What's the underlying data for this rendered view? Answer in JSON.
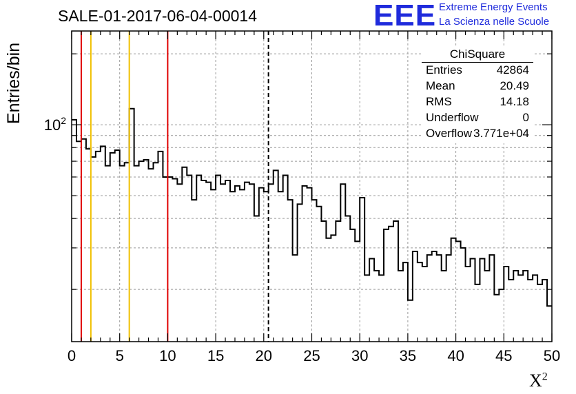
{
  "title": "SALE-01-2017-06-04-00014",
  "logo": {
    "mark": "EEE",
    "line1": "Extreme Energy Events",
    "line2": "La Scienza nelle Scuole",
    "color": "#1f2bdc"
  },
  "stats": {
    "header": "ChiSquare",
    "rows": [
      {
        "key": "Entries",
        "value": "42864"
      },
      {
        "key": "Mean",
        "value": "20.49"
      },
      {
        "key": "RMS",
        "value": "14.18"
      },
      {
        "key": "Underflow",
        "value": "0"
      },
      {
        "key": "Overflow",
        "value": "3.771e+04"
      }
    ]
  },
  "chart_data": {
    "type": "histogram",
    "xlabel": "X",
    "xlabel_sup": "2",
    "ylabel": "Entries/bin",
    "xlim": [
      0,
      50
    ],
    "ylim": [
      12,
      250
    ],
    "yscale": "log",
    "xticks": [
      "0",
      "5",
      "10",
      "15",
      "20",
      "25",
      "30",
      "35",
      "40",
      "45",
      "50"
    ],
    "ytick_label": "10",
    "ytick_label_sup": "2",
    "ytick_value": 100,
    "grid": true,
    "bin_width": 0.5,
    "values": [
      105,
      85,
      87,
      79,
      73,
      77,
      81,
      67,
      76,
      78,
      67,
      69,
      117,
      67,
      70,
      71,
      65,
      69,
      77,
      60,
      60,
      59,
      56,
      66,
      61,
      48,
      61,
      58,
      57,
      53,
      61,
      56,
      58,
      52,
      55,
      53,
      57,
      56,
      41,
      54,
      52,
      56,
      64,
      52,
      61,
      48,
      28,
      46,
      55,
      54,
      48,
      45,
      39,
      33,
      34,
      39,
      56,
      41,
      36,
      32,
      49,
      23,
      27,
      24,
      23,
      36,
      37,
      39,
      24,
      26,
      18,
      29,
      26,
      25,
      28,
      29,
      28,
      24,
      28,
      33,
      32,
      30,
      25,
      27,
      21,
      27,
      24,
      28,
      19,
      20,
      25,
      22,
      24,
      23,
      24,
      22,
      23,
      21,
      22,
      17
    ],
    "vlines": [
      {
        "x": 1.0,
        "color": "#e00000",
        "style": "solid"
      },
      {
        "x": 2.0,
        "color": "#f0c000",
        "style": "solid"
      },
      {
        "x": 6.0,
        "color": "#f0c000",
        "style": "solid"
      },
      {
        "x": 10.0,
        "color": "#e00000",
        "style": "solid"
      },
      {
        "x": 20.49,
        "color": "#000000",
        "style": "dashed"
      }
    ]
  }
}
